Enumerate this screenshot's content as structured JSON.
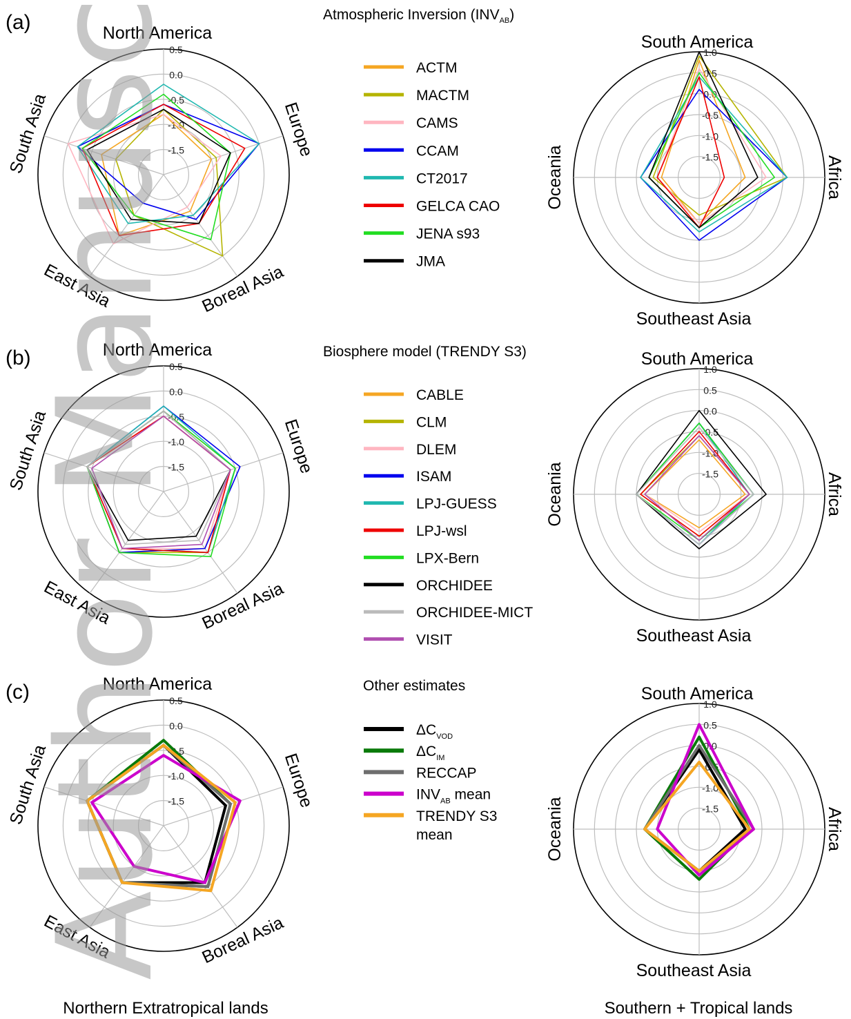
{
  "watermark": "Author Manuscript",
  "footer_left": "Northern Extratropical lands",
  "footer_right": "Southern + Tropical lands",
  "chart_data": [
    {
      "panel": "(a)",
      "legend_title": "Atmospheric Inversion (INV",
      "legend_title_sub": "AB",
      "legend_title_end": ")",
      "type": "radar",
      "ticks": [
        "0.5",
        "0.0",
        "-0.5",
        "-1.0",
        "-1.5"
      ],
      "north_axes": [
        "North America",
        "Europe",
        "Boreal Asia",
        "East Asia",
        "South Asia"
      ],
      "north_range": [
        -2.0,
        0.5
      ],
      "south_axes": [
        "South America",
        "Africa",
        "Southeast Asia",
        "Oceania"
      ],
      "south_ticks": [
        "1.0",
        "0.5",
        "0.0",
        "-0.5",
        "-1.0",
        "-1.5"
      ],
      "south_range": [
        -2.0,
        1.0
      ],
      "series": [
        {
          "name": "ACTM",
          "color": "#f5a623",
          "north": [
            -0.8,
            -1.0,
            -1.1,
            -0.5,
            -0.7
          ],
          "south": [
            0.8,
            -0.9,
            -0.9,
            -1.1
          ]
        },
        {
          "name": "MACTM",
          "color": "#b5b400",
          "north": [
            -0.7,
            -0.9,
            0.0,
            -1.0,
            -1.0
          ],
          "south": [
            0.9,
            0.1,
            -1.1,
            -0.9
          ]
        },
        {
          "name": "CAMS",
          "color": "#ffb6c1",
          "north": [
            -0.8,
            -0.8,
            -1.2,
            -0.3,
            0.0
          ],
          "south": [
            0.6,
            -0.4,
            -0.9,
            -1.0
          ]
        },
        {
          "name": "CCAM",
          "color": "#0000ee",
          "north": [
            -0.6,
            0.0,
            -0.9,
            -1.3,
            -0.2
          ],
          "south": [
            0.1,
            0.1,
            -0.5,
            -0.6
          ]
        },
        {
          "name": "CT2017",
          "color": "#20b8b0",
          "north": [
            -0.2,
            0.0,
            -1.0,
            -0.8,
            -0.2
          ],
          "south": [
            0.4,
            0.1,
            -0.7,
            -0.6
          ]
        },
        {
          "name": "GELCA CAO",
          "color": "#ee0000",
          "north": [
            -0.6,
            -0.3,
            -0.8,
            -0.5,
            -0.3
          ],
          "south": [
            0.4,
            -1.4,
            -0.8,
            -1.0
          ]
        },
        {
          "name": "JENA s93",
          "color": "#22dd22",
          "north": [
            -0.4,
            -0.6,
            -0.4,
            -1.0,
            -0.3
          ],
          "south": [
            0.5,
            -0.2,
            -0.8,
            -0.8
          ]
        },
        {
          "name": "JMA",
          "color": "#000000",
          "north": [
            -0.7,
            -0.6,
            -0.8,
            -0.9,
            -0.4
          ],
          "south": [
            1.0,
            -0.6,
            -0.8,
            -0.8
          ]
        }
      ]
    },
    {
      "panel": "(b)",
      "legend_title": "Biosphere model (TRENDY S3)",
      "type": "radar",
      "ticks": [
        "0.5",
        "0.0",
        "-0.5",
        "-1.0",
        "-1.5"
      ],
      "north_axes": [
        "North America",
        "Europe",
        "Boreal Asia",
        "East Asia",
        "South Asia"
      ],
      "north_range": [
        -2.0,
        0.5
      ],
      "south_axes": [
        "South America",
        "Africa",
        "Southeast Asia",
        "Oceania"
      ],
      "south_ticks": [
        "1.0",
        "0.5",
        "0.0",
        "-0.5",
        "-1.0",
        "-1.5"
      ],
      "south_range": [
        -2.0,
        1.0
      ],
      "series": [
        {
          "name": "CABLE",
          "color": "#f5a623",
          "north": [
            -0.5,
            -0.6,
            -0.6,
            -0.5,
            -0.4
          ],
          "south": [
            -0.7,
            -0.9,
            -1.2,
            -0.7
          ]
        },
        {
          "name": "CLM",
          "color": "#b5b400",
          "north": [
            -0.4,
            -0.5,
            -0.5,
            -0.5,
            -0.4
          ],
          "south": [
            -0.6,
            -0.8,
            -1.0,
            -0.6
          ]
        },
        {
          "name": "DLEM",
          "color": "#ffb6c1",
          "north": [
            -0.5,
            -0.6,
            -0.6,
            -0.6,
            -0.4
          ],
          "south": [
            -0.6,
            -0.8,
            -1.1,
            -0.7
          ]
        },
        {
          "name": "ISAM",
          "color": "#0000ee",
          "north": [
            -0.3,
            -0.4,
            -0.6,
            -0.5,
            -0.4
          ],
          "south": [
            -0.3,
            -0.7,
            -0.8,
            -0.5
          ]
        },
        {
          "name": "LPJ-GUESS",
          "color": "#20b8b0",
          "north": [
            -0.3,
            -0.5,
            -0.5,
            -0.6,
            -0.4
          ],
          "south": [
            -0.3,
            -0.8,
            -0.8,
            -0.5
          ]
        },
        {
          "name": "LPJ-wsl",
          "color": "#ee0000",
          "north": [
            -0.5,
            -0.6,
            -0.5,
            -0.6,
            -0.4
          ],
          "south": [
            -0.5,
            -0.8,
            -1.0,
            -0.6
          ]
        },
        {
          "name": "LPX-Bern",
          "color": "#22dd22",
          "north": [
            -0.4,
            -0.5,
            -0.4,
            -0.5,
            -0.4
          ],
          "south": [
            -0.3,
            -0.7,
            -0.9,
            -0.5
          ]
        },
        {
          "name": "ORCHIDEE",
          "color": "#000000",
          "north": [
            -0.4,
            -0.6,
            -0.9,
            -0.8,
            -0.4
          ],
          "south": [
            0.0,
            -0.4,
            -0.7,
            -0.5
          ]
        },
        {
          "name": "ORCHIDEE-MICT",
          "color": "#bbbbbb",
          "north": [
            -0.4,
            -0.6,
            -0.8,
            -0.7,
            -0.4
          ],
          "south": [
            -0.4,
            -0.7,
            -0.8,
            -0.5
          ]
        },
        {
          "name": "VISIT",
          "color": "#b04fb0",
          "north": [
            -0.5,
            -0.6,
            -0.7,
            -0.6,
            -0.5
          ],
          "south": [
            -0.6,
            -0.8,
            -0.9,
            -0.7
          ]
        }
      ]
    },
    {
      "panel": "(c)",
      "legend_title": "Other estimates",
      "type": "radar",
      "ticks": [
        "0.5",
        "0.0",
        "-0.5",
        "-1.0",
        "-1.5"
      ],
      "north_axes": [
        "North America",
        "Europe",
        "Boreal Asia",
        "East Asia",
        "South Asia"
      ],
      "north_range": [
        -2.0,
        0.5
      ],
      "south_axes": [
        "South America",
        "Africa",
        "Southeast Asia",
        "Oceania"
      ],
      "south_ticks": [
        "1.0",
        "0.5",
        "0.0",
        "-0.5",
        "-1.0",
        "-1.5"
      ],
      "south_range": [
        -2.0,
        1.0
      ],
      "series": [
        {
          "name": "ΔC",
          "name_sub": "VOD",
          "color": "#000000",
          "north": [
            -0.4,
            -0.7,
            -0.6,
            -0.6,
            -0.4
          ],
          "south": [
            -0.1,
            -0.9,
            -1.0,
            -0.7
          ]
        },
        {
          "name": "ΔC",
          "name_sub": "IM",
          "color": "#0a7a0a",
          "north": [
            -0.3,
            -0.6,
            -0.5,
            -0.6,
            -0.4
          ],
          "south": [
            0.2,
            -0.8,
            -0.8,
            -0.7
          ]
        },
        {
          "name": "RECCAP",
          "color": "#6e6e6e",
          "north": [
            -0.4,
            -0.6,
            -0.5,
            -0.6,
            -0.4
          ],
          "south": [
            0.0,
            -0.7,
            -1.0,
            -0.7
          ]
        },
        {
          "name": "INV",
          "name_sub": "AB",
          "name_end": " mean",
          "color": "#cc00cc",
          "north": [
            -0.6,
            -0.4,
            -0.6,
            -1.0,
            -0.5
          ],
          "south": [
            0.5,
            -0.7,
            -0.9,
            -1.0
          ]
        },
        {
          "name": "TRENDY S3",
          "name_line2": "mean",
          "color": "#f5a623",
          "north": [
            -0.4,
            -0.5,
            -0.4,
            -0.6,
            -0.4
          ],
          "south": [
            -0.4,
            -0.8,
            -1.0,
            -0.7
          ]
        }
      ]
    }
  ]
}
